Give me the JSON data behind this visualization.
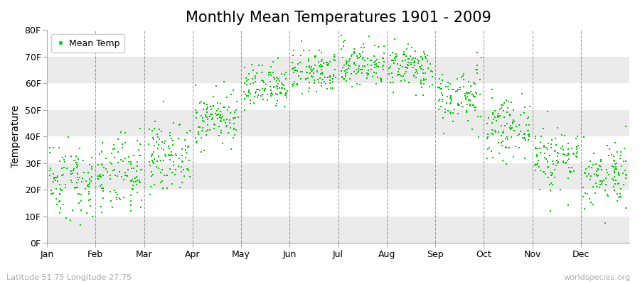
{
  "title": "Monthly Mean Temperatures 1901 - 2009",
  "ylabel": "Temperature",
  "xlabel_labels": [
    "Jan",
    "Feb",
    "Mar",
    "Apr",
    "May",
    "Jun",
    "Jul",
    "Aug",
    "Sep",
    "Oct",
    "Nov",
    "Dec"
  ],
  "ytick_labels": [
    "0F",
    "10F",
    "20F",
    "30F",
    "40F",
    "50F",
    "60F",
    "70F",
    "80F"
  ],
  "ytick_values": [
    0,
    10,
    20,
    30,
    40,
    50,
    60,
    70,
    80
  ],
  "ylim": [
    0,
    80
  ],
  "dot_color": "#00cc00",
  "dot_size": 3,
  "legend_label": "Mean Temp",
  "bg_color": "#ffffff",
  "band_color_light": "#ffffff",
  "band_color_dark": "#ebebeb",
  "grid_color": "#666666",
  "title_fontsize": 15,
  "axis_fontsize": 10,
  "tick_fontsize": 9,
  "watermark_text": "worldspecies.org",
  "bottom_left_text": "Latitude 51.75 Longitude 27.75",
  "monthly_means_F": [
    24,
    25,
    33,
    47,
    58,
    64,
    67,
    66,
    55,
    43,
    32,
    26
  ],
  "monthly_stds_F": [
    7,
    7,
    6,
    5,
    4,
    4,
    4,
    4,
    5,
    5,
    6,
    6
  ],
  "monthly_trend_F": [
    0.05,
    0.05,
    0.04,
    0.04,
    0.03,
    0.03,
    0.03,
    0.03,
    0.04,
    0.04,
    0.05,
    0.05
  ],
  "num_years": 109,
  "seed": 42
}
